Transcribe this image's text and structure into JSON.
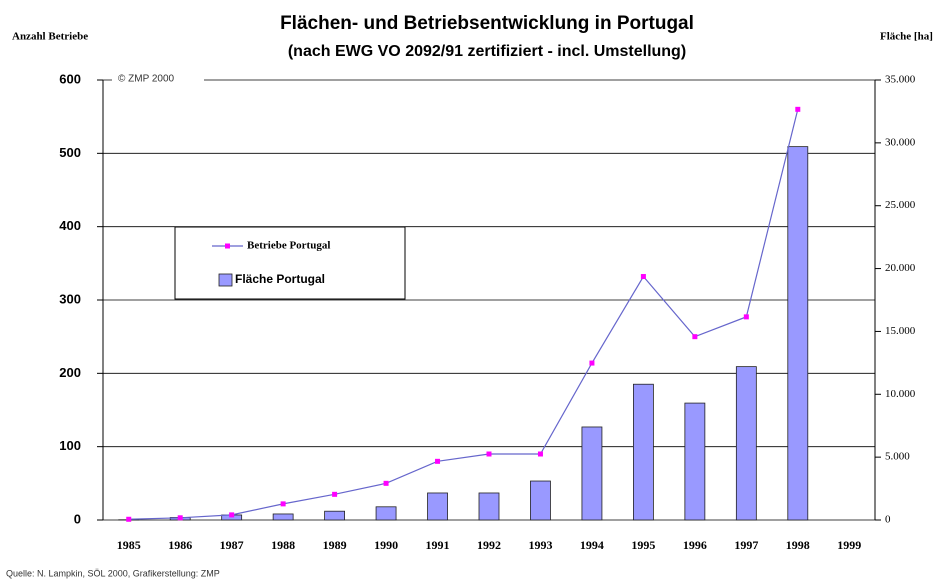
{
  "chart_data": {
    "type": "combo",
    "title": "Flächen- und Betriebsentwicklung in Portugal",
    "subtitle": "(nach EWG VO 2092/91 zertifiziert - incl. Umstellung)",
    "y_label": "Anzahl Betriebe",
    "y2_label": "Fläche [ha]",
    "annotation": "© ZMP 2000",
    "source": "Quelle: N. Lampkin, SÖL 2000, Grafikerstellung: ZMP",
    "categories": [
      "1985",
      "1986",
      "1987",
      "1988",
      "1989",
      "1990",
      "1991",
      "1992",
      "1993",
      "1994",
      "1995",
      "1996",
      "1997",
      "1998",
      "1999"
    ],
    "series": [
      {
        "name": "Betriebe Portugal",
        "type": "line",
        "axis": "y",
        "color": "#6666cc",
        "marker_color": "#ff00ff",
        "values": [
          1,
          3,
          7,
          22,
          35,
          50,
          80,
          90,
          90,
          214,
          332,
          250,
          277,
          560,
          null
        ]
      },
      {
        "name": "Fläche Portugal",
        "type": "bar",
        "axis": "y2",
        "color": "#9999ff",
        "values": [
          20,
          200,
          400,
          480,
          700,
          1050,
          2150,
          2150,
          3100,
          7400,
          10800,
          9300,
          12200,
          29700,
          null
        ]
      }
    ],
    "ylim": [
      0,
      600
    ],
    "yticks": [
      0,
      100,
      200,
      300,
      400,
      500,
      600
    ],
    "y2lim": [
      0,
      35000
    ],
    "y2ticks": [
      0,
      {
        "value": 5000,
        "label": "5.000"
      },
      {
        "value": 10000,
        "label": "10.000"
      },
      {
        "value": 15000,
        "label": "15.000"
      },
      {
        "value": 20000,
        "label": "20.000"
      },
      {
        "value": 25000,
        "label": "25.000"
      },
      {
        "value": 30000,
        "label": "30.000"
      },
      {
        "value": 35000,
        "label": "35.000"
      }
    ],
    "grid": true,
    "legend": "left"
  }
}
